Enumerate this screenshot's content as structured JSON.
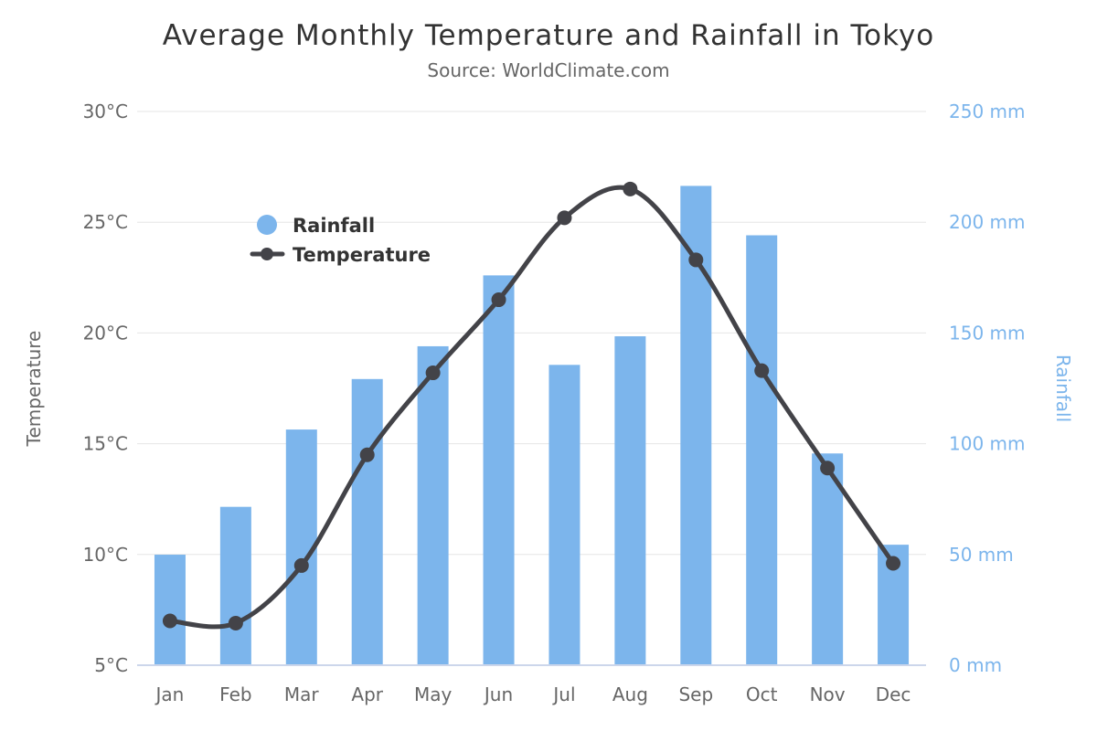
{
  "chart_data": {
    "type": "combo-column-spline",
    "title": "Average Monthly Temperature and Rainfall in Tokyo",
    "subtitle": "Source: WorldClimate.com",
    "categories": [
      "Jan",
      "Feb",
      "Mar",
      "Apr",
      "May",
      "Jun",
      "Jul",
      "Aug",
      "Sep",
      "Oct",
      "Nov",
      "Dec"
    ],
    "series": [
      {
        "name": "Rainfall",
        "type": "column",
        "axis": "right",
        "unit": "mm",
        "color": "#7cb5ec",
        "values": [
          49.9,
          71.5,
          106.4,
          129.2,
          144.0,
          176.0,
          135.6,
          148.5,
          216.4,
          194.1,
          95.6,
          54.4
        ]
      },
      {
        "name": "Temperature",
        "type": "spline",
        "axis": "left",
        "unit": "°C",
        "color": "#434348",
        "values": [
          7.0,
          6.9,
          9.5,
          14.5,
          18.2,
          21.5,
          25.2,
          26.5,
          23.3,
          18.3,
          13.9,
          9.6
        ]
      }
    ],
    "yaxis_left": {
      "title": "Temperature",
      "min": 5,
      "max": 30,
      "tick_step": 5,
      "ticks": [
        "5°C",
        "10°C",
        "15°C",
        "20°C",
        "25°C",
        "30°C"
      ],
      "label_color": "#666666"
    },
    "yaxis_right": {
      "title": "Rainfall",
      "min": 0,
      "max": 250,
      "tick_step": 50,
      "ticks": [
        "0 mm",
        "50 mm",
        "100 mm",
        "150 mm",
        "200 mm",
        "250 mm"
      ],
      "label_color": "#7cb5ec"
    },
    "xaxis": {
      "label_color": "#666666"
    },
    "legend": {
      "position": "floating-left-inside",
      "items": [
        {
          "label": "Rainfall",
          "marker": "circle",
          "color": "#7cb5ec"
        },
        {
          "label": "Temperature",
          "marker": "line-dot",
          "color": "#434348"
        }
      ]
    },
    "grid": true,
    "colors": {
      "grid_line": "#e6e6e6",
      "axis_line": "#ccd6eb",
      "title": "#333333",
      "subtitle": "#666666",
      "background": "#ffffff"
    }
  }
}
